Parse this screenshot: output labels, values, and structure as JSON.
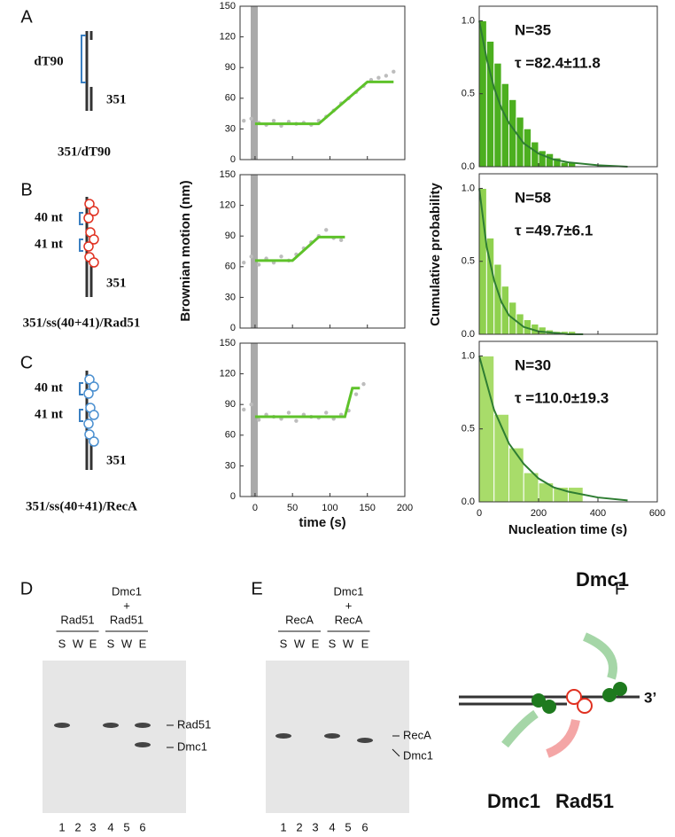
{
  "panel_letters": [
    "A",
    "B",
    "C",
    "D",
    "E",
    "F"
  ],
  "constructs": [
    {
      "annotations": [
        "dT90"
      ],
      "length": "351",
      "caption": "351/dT90"
    },
    {
      "annotations": [
        "40 nt",
        "41 nt"
      ],
      "length": "351",
      "caption": "351/ss(40+41)/Rad51"
    },
    {
      "annotations": [
        "40 nt",
        "41 nt"
      ],
      "length": "351",
      "caption": "351/ss(40+41)/RecA"
    }
  ],
  "shared_labels": {
    "brownian_y": "Brownian motion (nm)",
    "brownian_x": "time (s)",
    "hist_y": "Cumulative probability",
    "hist_x": "Nucleation time (s)"
  },
  "chart_data": [
    {
      "type": "line",
      "xlim": [
        -20,
        200
      ],
      "xticks": [
        0,
        50,
        100,
        150,
        200
      ],
      "ylim": [
        0,
        150
      ],
      "yticks": [
        0,
        30,
        60,
        90,
        120,
        150
      ],
      "points": {
        "color": "#bdbdbd",
        "x": [
          -15,
          -5,
          5,
          15,
          25,
          35,
          45,
          55,
          65,
          75,
          85,
          95,
          105,
          115,
          125,
          135,
          145,
          155,
          165,
          175,
          185
        ],
        "y": [
          38,
          40,
          36,
          34,
          38,
          33,
          37,
          35,
          36,
          34,
          38,
          42,
          48,
          55,
          60,
          66,
          72,
          78,
          80,
          82,
          86
        ]
      },
      "fit": {
        "color": "#5ec22a",
        "x": [
          0,
          85,
          150,
          185
        ],
        "y": [
          35,
          35,
          76,
          76
        ]
      }
    },
    {
      "type": "line",
      "xlim": [
        -20,
        200
      ],
      "xticks": [
        0,
        50,
        100,
        150,
        200
      ],
      "ylim": [
        0,
        150
      ],
      "yticks": [
        0,
        30,
        60,
        90,
        120,
        150
      ],
      "points": {
        "color": "#bdbdbd",
        "x": [
          -15,
          -5,
          5,
          15,
          25,
          35,
          45,
          55,
          65,
          75,
          85,
          95,
          105,
          115
        ],
        "y": [
          64,
          70,
          62,
          68,
          64,
          70,
          66,
          72,
          78,
          84,
          90,
          96,
          88,
          86
        ]
      },
      "fit": {
        "color": "#5ec22a",
        "x": [
          0,
          50,
          85,
          120
        ],
        "y": [
          66,
          66,
          89,
          89
        ]
      }
    },
    {
      "type": "line",
      "xlim": [
        -20,
        200
      ],
      "xticks": [
        0,
        50,
        100,
        150,
        200
      ],
      "ylim": [
        0,
        150
      ],
      "yticks": [
        0,
        30,
        60,
        90,
        120,
        150
      ],
      "points": {
        "color": "#bdbdbd",
        "x": [
          -15,
          -5,
          5,
          15,
          25,
          35,
          45,
          55,
          65,
          75,
          85,
          95,
          105,
          115,
          125,
          135,
          145
        ],
        "y": [
          85,
          90,
          75,
          80,
          78,
          76,
          82,
          74,
          80,
          78,
          77,
          82,
          76,
          80,
          84,
          100,
          110
        ]
      },
      "fit": {
        "color": "#5ec22a",
        "x": [
          0,
          120,
          130,
          140
        ],
        "y": [
          78,
          78,
          106,
          106
        ]
      }
    },
    {
      "type": "histogram",
      "xlim": [
        0,
        600
      ],
      "xticks": [
        0,
        200,
        400,
        600
      ],
      "ylim": [
        0,
        1.1
      ],
      "yticks": [
        {
          "value": 0,
          "label": "0.0"
        },
        {
          "value": 0.5,
          "label": "0.5"
        },
        {
          "value": 1,
          "label": "1.0"
        }
      ],
      "bins": [
        0,
        25,
        50,
        75,
        100,
        125,
        150,
        175,
        200,
        225,
        250,
        275,
        300,
        325
      ],
      "values": [
        1.0,
        0.86,
        0.71,
        0.57,
        0.46,
        0.34,
        0.26,
        0.17,
        0.11,
        0.09,
        0.06,
        0.03,
        0.03
      ],
      "color": "#4caf1f",
      "annotations": [
        "N=35",
        "τ =82.4±11.8"
      ],
      "fit": {
        "color": "#2e7d32",
        "x": [
          0,
          25,
          50,
          75,
          100,
          150,
          200,
          250,
          300,
          400,
          500
        ],
        "y": [
          1.0,
          0.74,
          0.54,
          0.4,
          0.3,
          0.16,
          0.09,
          0.05,
          0.03,
          0.01,
          0.0
        ]
      }
    },
    {
      "type": "histogram",
      "xlim": [
        0,
        600
      ],
      "xticks": [
        0,
        200,
        400,
        600
      ],
      "ylim": [
        0,
        1.1
      ],
      "yticks": [
        {
          "value": 0,
          "label": "0.0"
        },
        {
          "value": 0.5,
          "label": "0.5"
        },
        {
          "value": 1,
          "label": "1.0"
        }
      ],
      "bins": [
        0,
        25,
        50,
        75,
        100,
        125,
        150,
        175,
        200,
        225,
        250,
        275,
        300,
        325
      ],
      "values": [
        1.0,
        0.66,
        0.48,
        0.33,
        0.22,
        0.14,
        0.1,
        0.07,
        0.05,
        0.03,
        0.02,
        0.02,
        0.02
      ],
      "color": "#8fd14f",
      "annotations": [
        "N=58",
        "τ =49.7±6.1"
      ],
      "fit": {
        "color": "#2e7d32",
        "x": [
          0,
          25,
          50,
          75,
          100,
          150,
          200,
          250,
          300,
          350
        ],
        "y": [
          1.0,
          0.6,
          0.37,
          0.22,
          0.13,
          0.05,
          0.02,
          0.01,
          0.0,
          0.0
        ]
      }
    },
    {
      "type": "histogram",
      "xlim": [
        0,
        600
      ],
      "xticks": [
        0,
        200,
        400,
        600
      ],
      "ylim": [
        0,
        1.1
      ],
      "yticks": [
        {
          "value": 0,
          "label": "0.0"
        },
        {
          "value": 0.5,
          "label": "0.5"
        },
        {
          "value": 1,
          "label": "1.0"
        }
      ],
      "bins": [
        0,
        50,
        100,
        150,
        200,
        250,
        300,
        350
      ],
      "values": [
        1.0,
        0.6,
        0.37,
        0.2,
        0.13,
        0.1,
        0.1
      ],
      "color": "#a8dc6a",
      "annotations": [
        "N=30",
        "τ =110.0±19.3"
      ],
      "fit": {
        "color": "#2e7d32",
        "x": [
          0,
          50,
          100,
          150,
          200,
          250,
          300,
          400,
          500
        ],
        "y": [
          1.0,
          0.63,
          0.4,
          0.26,
          0.16,
          0.1,
          0.07,
          0.03,
          0.01
        ]
      }
    }
  ],
  "gels": [
    {
      "group_labels": [
        [
          "Rad51"
        ],
        [
          "Dmc1",
          "+",
          "Rad51"
        ]
      ],
      "lanes": [
        "S",
        "W",
        "E",
        "S",
        "W",
        "E"
      ],
      "lane_numbers": [
        "1",
        "2",
        "3",
        "4",
        "5",
        "6"
      ],
      "band_labels": [
        "Rad51",
        "Dmc1"
      ]
    },
    {
      "group_labels": [
        [
          "RecA"
        ],
        [
          "Dmc1",
          "+",
          "RecA"
        ]
      ],
      "lanes": [
        "S",
        "W",
        "E",
        "S",
        "W",
        "E"
      ],
      "lane_numbers": [
        "1",
        "2",
        "3",
        "4",
        "5",
        "6"
      ],
      "band_labels": [
        "RecA",
        "Dmc1"
      ]
    }
  ],
  "model": {
    "top_label": "Dmc1",
    "bottom_left_label": "Dmc1",
    "bottom_right_label": "Rad51",
    "end_label": "3’"
  }
}
